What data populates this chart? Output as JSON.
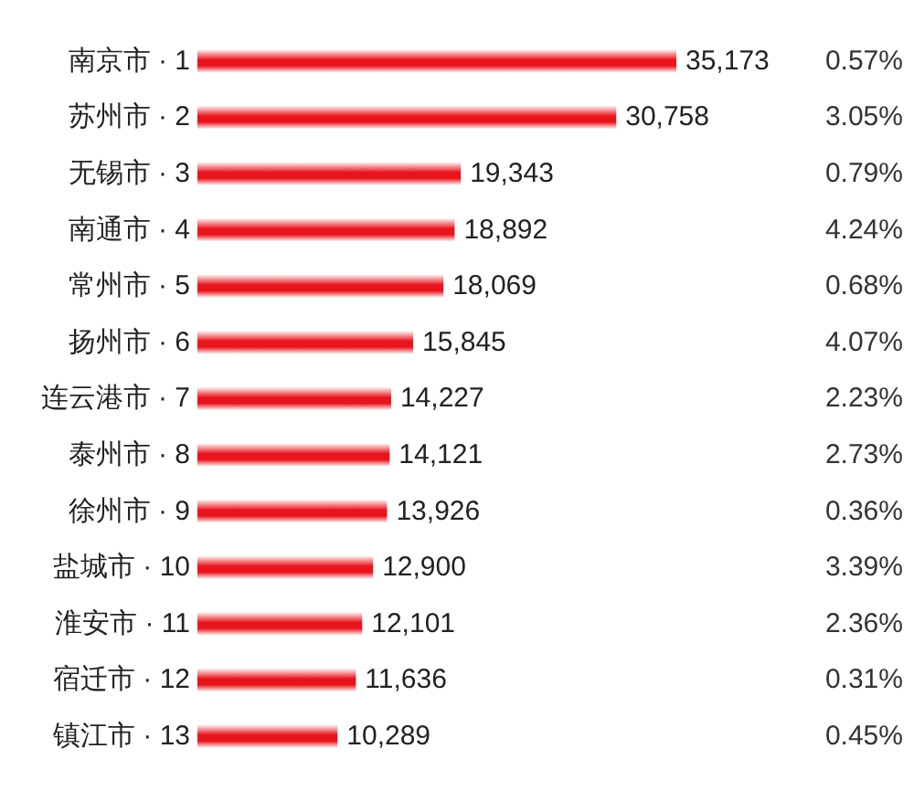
{
  "chart_data": {
    "type": "bar",
    "orientation": "horizontal",
    "tick_labels": "y",
    "color": "#e8141c",
    "categories": [
      "南京市 · 1",
      "苏州市 · 2",
      "无锡市 · 3",
      "南通市 · 4",
      "常州市 · 5",
      "扬州市 · 6",
      "连云港市 · 7",
      "泰州市 · 8",
      "徐州市 · 9",
      "盐城市 · 10",
      "淮安市 · 11",
      "宿迁市 · 12",
      "镇江市 · 13"
    ],
    "values": [
      35173,
      30758,
      19343,
      18892,
      18069,
      15845,
      14227,
      14121,
      13926,
      12900,
      12101,
      11636,
      10289
    ],
    "value_labels": [
      "35,173",
      "30,758",
      "19,343",
      "18,892",
      "18,069",
      "15,845",
      "14,227",
      "14,121",
      "13,926",
      "12,900",
      "12,101",
      "11,636",
      "10,289"
    ],
    "annotations": [
      "0.57%",
      "3.05%",
      "0.79%",
      "4.24%",
      "0.68%",
      "4.07%",
      "2.23%",
      "2.73%",
      "0.36%",
      "3.39%",
      "2.36%",
      "0.31%",
      "0.45%"
    ]
  }
}
